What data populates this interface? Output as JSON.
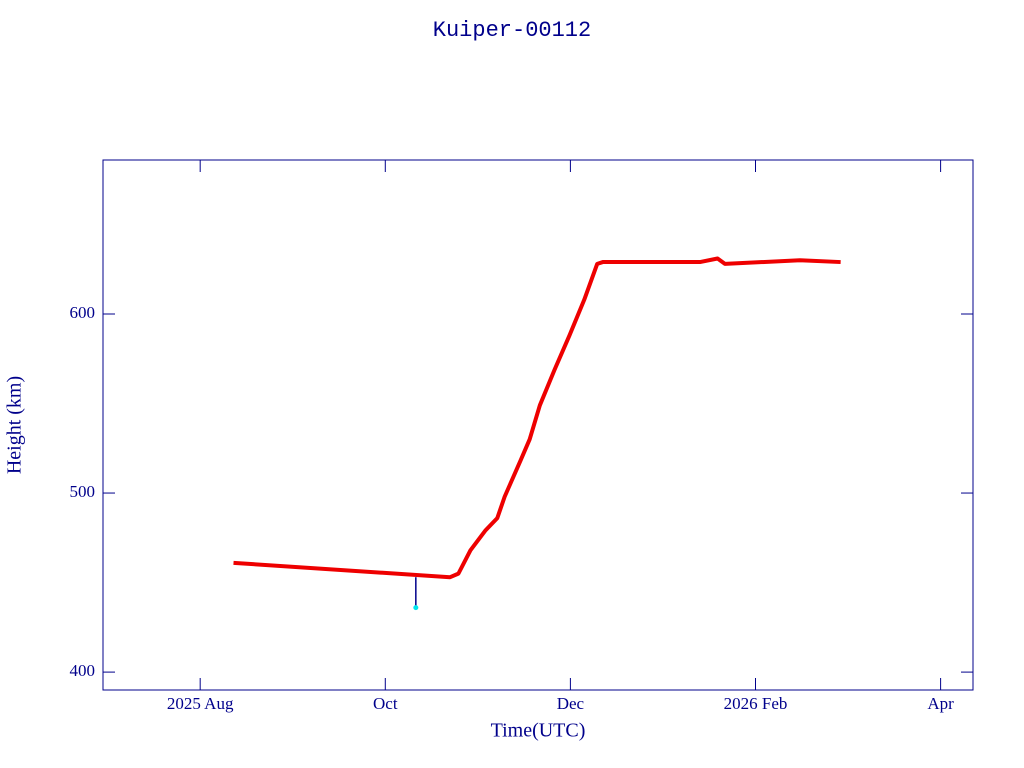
{
  "chart_data": {
    "type": "line",
    "title": "Kuiper-00112",
    "x_label": "Time(UTC)",
    "y_label": "Height (km)",
    "xlim": [
      -1.05,
      8.35
    ],
    "xticks": [
      {
        "value": 0,
        "label": "2025 Aug"
      },
      {
        "value": 2,
        "label": "Oct"
      },
      {
        "value": 4,
        "label": "Dec"
      },
      {
        "value": 6,
        "label": "2026 Feb"
      },
      {
        "value": 8,
        "label": "Apr"
      }
    ],
    "ylim": [
      390,
      686
    ],
    "yticks": [
      400,
      500,
      600
    ],
    "axis_color": "#00008b",
    "series": [
      {
        "color": "#ee0000",
        "x": [
          0.36,
          2.7,
          2.79,
          2.92,
          3.08,
          3.21,
          3.29,
          3.46,
          3.56,
          3.67,
          3.83,
          3.99,
          4.15,
          4.29,
          4.35,
          5.4,
          5.59,
          5.67,
          6.48,
          6.92
        ],
        "values": [
          461,
          453,
          455,
          468,
          479,
          486,
          498,
          518,
          530,
          549,
          569,
          588,
          608,
          628,
          629,
          629,
          631,
          628,
          630,
          629
        ]
      },
      {
        "color": "#00e5ee",
        "line_color": "#00008b",
        "x": [
          2.33,
          2.33
        ],
        "values": [
          453,
          436
        ]
      }
    ]
  }
}
